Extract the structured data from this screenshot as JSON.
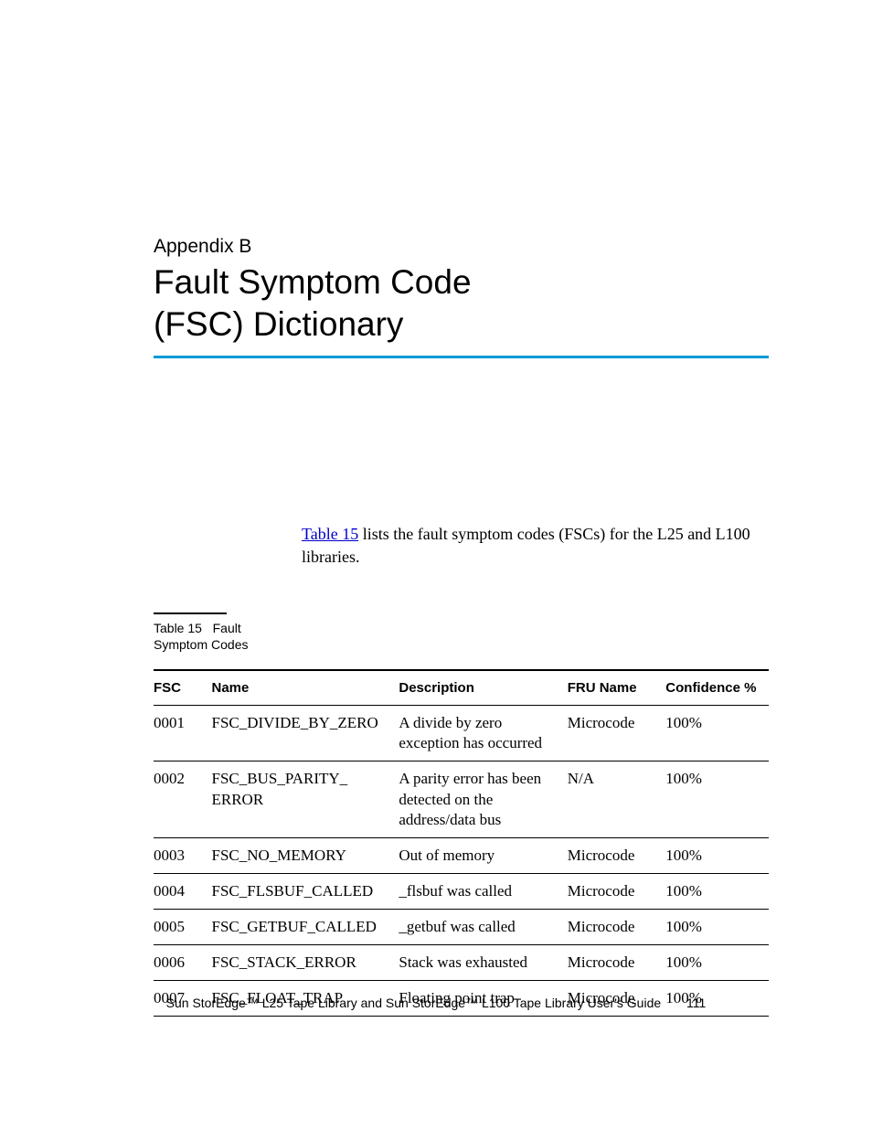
{
  "header": {
    "appendix_label": "Appendix B",
    "title_line1": "Fault Symptom Code",
    "title_line2": "(FSC) Dictionary"
  },
  "accent_color": "#0099d6",
  "intro": {
    "link_text": "Table 15",
    "after_link": " lists the fault symptom codes (FSCs) for the L25 and L100 libraries."
  },
  "table_caption": {
    "prefix": "Table 15",
    "text": "Fault Symptom Codes"
  },
  "table": {
    "columns": [
      "FSC",
      "Name",
      "Description",
      "FRU Name",
      "Confidence %"
    ],
    "rows": [
      {
        "fsc": "0001",
        "name": "FSC_DIVIDE_BY_ZERO",
        "desc": "A divide by zero exception has occurred",
        "fru": "Microcode",
        "conf": "100%"
      },
      {
        "fsc": "0002",
        "name": "FSC_BUS_PARITY_\nERROR",
        "desc": "A parity error has been detected on the address/data bus",
        "fru": "N/A",
        "conf": "100%"
      },
      {
        "fsc": "0003",
        "name": "FSC_NO_MEMORY",
        "desc": "Out of memory",
        "fru": "Microcode",
        "conf": "100%"
      },
      {
        "fsc": "0004",
        "name": "FSC_FLSBUF_CALLED",
        "desc": "_flsbuf was called",
        "fru": "Microcode",
        "conf": "100%"
      },
      {
        "fsc": "0005",
        "name": "FSC_GETBUF_CALLED",
        "desc": "_getbuf was called",
        "fru": "Microcode",
        "conf": "100%"
      },
      {
        "fsc": "0006",
        "name": "FSC_STACK_ERROR",
        "desc": "Stack was exhausted",
        "fru": "Microcode",
        "conf": "100%"
      },
      {
        "fsc": "0007",
        "name": "FSC_FLOAT_TRAP",
        "desc": "Floating point trap",
        "fru": "Microcode",
        "conf": "100%"
      }
    ]
  },
  "footer": {
    "text": "Sun StorEdge™ L25 Tape Library and Sun StorEdge™ L100 Tape Library User's Guide",
    "page_number": "111"
  }
}
